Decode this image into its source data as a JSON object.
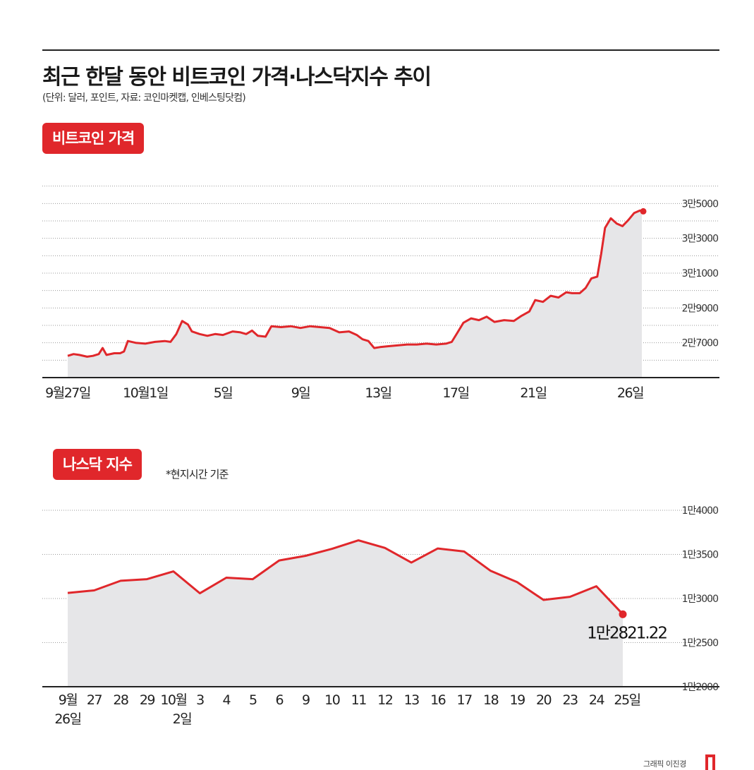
{
  "header": {
    "title": "최근 한달 동안 비트코인 가격·나스닥지수 추이",
    "subtitle": "(단위: 달러, 포인트, 자료: 코인마켓캡, 인베스팅닷컴)"
  },
  "btc_badge": "비트코인 가격",
  "nasdaq_badge": "나스닥 지수",
  "nasdaq_note": "*현지시간 기준",
  "credit": "그래픽 이진경",
  "colors": {
    "accent": "#e0272b",
    "area": "#e6e6e8",
    "grid": "#9a9a9a"
  },
  "chart_data": [
    {
      "type": "line",
      "title": "비트코인 가격",
      "unit": "달러",
      "ylim": [
        25000,
        37000
      ],
      "grid_values": [
        26000,
        27000,
        28000,
        29000,
        30000,
        31000,
        32000,
        33000,
        34000,
        35000,
        36000
      ],
      "y_tick_values": [
        27000,
        29000,
        31000,
        33000,
        35000
      ],
      "y_tick_labels": [
        "2만7000",
        "2만9000",
        "3만1000",
        "3만3000",
        "3만5000"
      ],
      "x_ticks": [
        {
          "day": 0,
          "label": "9월27일"
        },
        {
          "day": 4,
          "label": "10월1일"
        },
        {
          "day": 8,
          "label": "5일"
        },
        {
          "day": 12,
          "label": "9일"
        },
        {
          "day": 16,
          "label": "13일"
        },
        {
          "day": 20,
          "label": "17일"
        },
        {
          "day": 24,
          "label": "21일"
        },
        {
          "day": 29,
          "label": "26일"
        }
      ],
      "points": [
        [
          0,
          26250
        ],
        [
          0.3,
          26350
        ],
        [
          0.6,
          26300
        ],
        [
          1,
          26200
        ],
        [
          1.3,
          26250
        ],
        [
          1.6,
          26350
        ],
        [
          1.8,
          26700
        ],
        [
          2.0,
          26300
        ],
        [
          2.4,
          26400
        ],
        [
          2.7,
          26400
        ],
        [
          2.9,
          26500
        ],
        [
          3.1,
          27100
        ],
        [
          3.5,
          27000
        ],
        [
          4,
          26950
        ],
        [
          4.5,
          27050
        ],
        [
          5,
          27100
        ],
        [
          5.3,
          27050
        ],
        [
          5.6,
          27500
        ],
        [
          5.9,
          28250
        ],
        [
          6.2,
          28050
        ],
        [
          6.4,
          27650
        ],
        [
          6.8,
          27500
        ],
        [
          7.2,
          27400
        ],
        [
          7.6,
          27500
        ],
        [
          8,
          27450
        ],
        [
          8.5,
          27650
        ],
        [
          8.9,
          27600
        ],
        [
          9.2,
          27500
        ],
        [
          9.5,
          27700
        ],
        [
          9.8,
          27400
        ],
        [
          10.2,
          27350
        ],
        [
          10.5,
          27950
        ],
        [
          11,
          27900
        ],
        [
          11.5,
          27950
        ],
        [
          12,
          27850
        ],
        [
          12.5,
          27950
        ],
        [
          13,
          27900
        ],
        [
          13.5,
          27850
        ],
        [
          14,
          27600
        ],
        [
          14.5,
          27650
        ],
        [
          14.9,
          27450
        ],
        [
          15.2,
          27200
        ],
        [
          15.5,
          27100
        ],
        [
          15.8,
          26700
        ],
        [
          16.1,
          26750
        ],
        [
          16.5,
          26800
        ],
        [
          17,
          26850
        ],
        [
          17.5,
          26900
        ],
        [
          18,
          26900
        ],
        [
          18.5,
          26950
        ],
        [
          19,
          26900
        ],
        [
          19.5,
          26950
        ],
        [
          19.8,
          27050
        ],
        [
          20.1,
          27600
        ],
        [
          20.4,
          28150
        ],
        [
          20.8,
          28400
        ],
        [
          21.2,
          28300
        ],
        [
          21.6,
          28500
        ],
        [
          22,
          28200
        ],
        [
          22.5,
          28300
        ],
        [
          23,
          28250
        ],
        [
          23.4,
          28550
        ],
        [
          23.8,
          28800
        ],
        [
          24.1,
          29450
        ],
        [
          24.5,
          29350
        ],
        [
          24.9,
          29700
        ],
        [
          25.3,
          29600
        ],
        [
          25.7,
          29900
        ],
        [
          26,
          29850
        ],
        [
          26.4,
          29850
        ],
        [
          26.7,
          30150
        ],
        [
          27,
          30700
        ],
        [
          27.3,
          30800
        ],
        [
          27.5,
          32100
        ],
        [
          27.7,
          33600
        ],
        [
          28,
          34150
        ],
        [
          28.3,
          33850
        ],
        [
          28.6,
          33700
        ],
        [
          28.9,
          34050
        ],
        [
          29.2,
          34450
        ],
        [
          29.5,
          34600
        ],
        [
          29.6,
          34550
        ]
      ],
      "end_marker": true
    },
    {
      "type": "line",
      "title": "나스닥 지수",
      "unit": "포인트",
      "ylim": [
        12000,
        14000
      ],
      "grid_values": [
        12000,
        12500,
        13000,
        13500,
        14000
      ],
      "y_tick_values": [
        12000,
        12500,
        13000,
        13500,
        14000
      ],
      "y_tick_labels": [
        "1만2000",
        "1만2500",
        "1만3000",
        "1만3500",
        "1만4000"
      ],
      "categories": [
        "9월 26일",
        "27",
        "28",
        "29",
        "10월 2일",
        "3",
        "4",
        "5",
        "6",
        "9",
        "10",
        "11",
        "12",
        "13",
        "16",
        "17",
        "18",
        "19",
        "20",
        "23",
        "24",
        "25일"
      ],
      "x_tick_labels": [
        [
          "9월",
          "26일"
        ],
        [
          "27",
          ""
        ],
        [
          "28",
          ""
        ],
        [
          "29",
          ""
        ],
        [
          "10월",
          "2일"
        ],
        [
          "3",
          ""
        ],
        [
          "4",
          ""
        ],
        [
          "5",
          ""
        ],
        [
          "6",
          ""
        ],
        [
          "9",
          ""
        ],
        [
          "10",
          ""
        ],
        [
          "11",
          ""
        ],
        [
          "12",
          ""
        ],
        [
          "13",
          ""
        ],
        [
          "16",
          ""
        ],
        [
          "17",
          ""
        ],
        [
          "18",
          ""
        ],
        [
          "19",
          ""
        ],
        [
          "20",
          ""
        ],
        [
          "23",
          ""
        ],
        [
          "24",
          ""
        ],
        [
          "25일",
          ""
        ]
      ],
      "values": [
        13063,
        13092,
        13201,
        13219,
        13307,
        13059,
        13236,
        13219,
        13431,
        13484,
        13563,
        13659,
        13574,
        13407,
        13567,
        13533,
        13314,
        13186,
        12984,
        13019,
        13139,
        12821.22
      ],
      "end_label": "1만2821.22",
      "end_marker": true
    }
  ]
}
